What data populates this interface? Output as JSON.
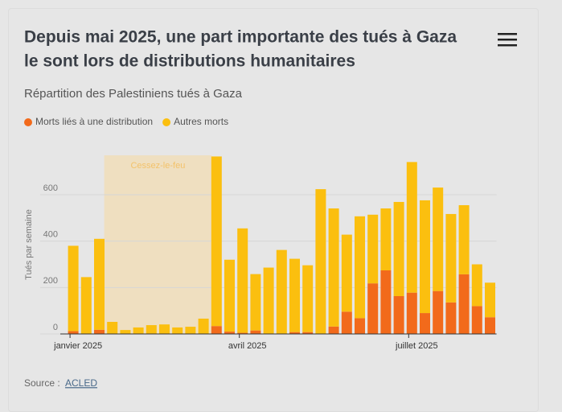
{
  "header": {
    "title_line1": "Depuis mai 2025, une part importante des tués à Gaza",
    "title_line2": "le sont lors de distributions humanitaires",
    "subtitle": "Répartition des Palestiniens tués à Gaza"
  },
  "chart_data": {
    "type": "stacked_bar",
    "y_label": "Tués par semaine",
    "annotation": "Cessez-le-feu",
    "categories": [
      "janvier 2025",
      null,
      null,
      null,
      null,
      null,
      null,
      null,
      null,
      null,
      null,
      null,
      null,
      "avril 2025",
      null,
      null,
      null,
      null,
      null,
      null,
      null,
      null,
      null,
      null,
      null,
      null,
      "juillet 2025",
      null,
      null,
      null,
      null,
      null,
      null
    ],
    "series": [
      {
        "name": "Morts liés à une distribution",
        "color": "#f26a1b",
        "values": [
          12,
          0,
          18,
          0,
          0,
          0,
          0,
          0,
          0,
          0,
          0,
          34,
          10,
          5,
          15,
          0,
          0,
          8,
          8,
          0,
          32,
          96,
          68,
          218,
          274,
          163,
          178,
          90,
          185,
          136,
          257,
          120,
          72
        ]
      },
      {
        "name": "Autres morts",
        "color": "#fbbf0f",
        "values": [
          368,
          245,
          392,
          52,
          17,
          28,
          38,
          41,
          28,
          31,
          66,
          731,
          310,
          450,
          243,
          286,
          362,
          316,
          288,
          624,
          509,
          332,
          439,
          296,
          267,
          406,
          563,
          486,
          446,
          381,
          298,
          180,
          149
        ]
      }
    ],
    "ylim": [
      0,
      770
    ],
    "yticks": [
      0,
      200,
      400,
      600
    ],
    "grid": true
  },
  "footer": {
    "source_label": "Source :",
    "source_link": "ACLED"
  }
}
